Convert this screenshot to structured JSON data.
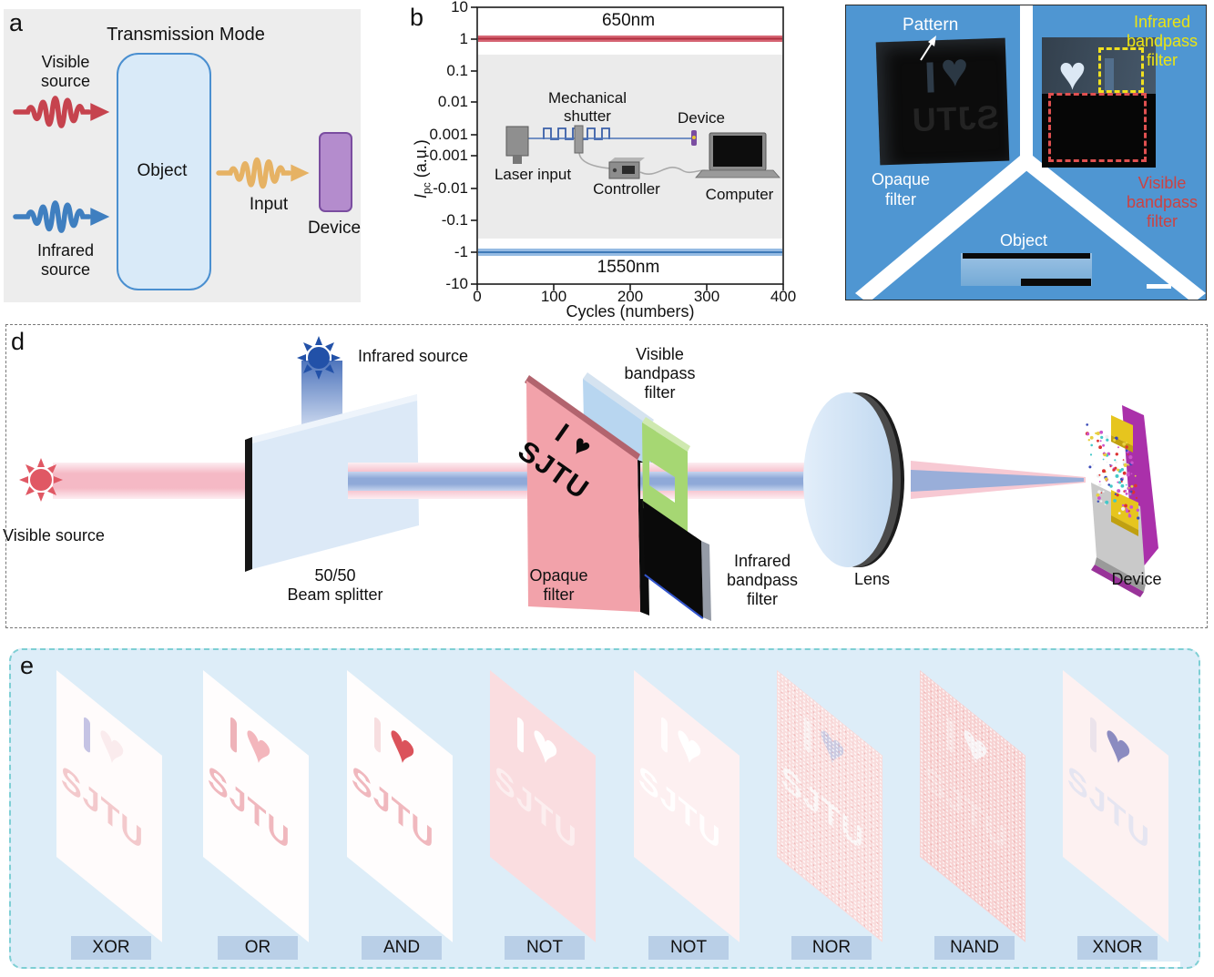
{
  "figure": {
    "a_letter": "a",
    "b_letter": "b",
    "d_letter": "d",
    "e_letter": "e"
  },
  "a": {
    "title": "Transmission Mode",
    "visible_source": [
      "Visible",
      "source"
    ],
    "infrared_source": [
      "Infrared",
      "source"
    ],
    "object_label": "Object",
    "input_label": "Input",
    "device_label": "Device",
    "colors": {
      "visible_wave": "#c6434e",
      "infrared_wave": "#3f7fc0",
      "input_wave": "#e6b264",
      "object_fill": "#d9eaf8",
      "object_border": "#4a8fd0",
      "device_fill": "#b48ccd",
      "device_border": "#7a4da0",
      "bg": "#ededed"
    }
  },
  "b": {
    "top_series_label": "650nm",
    "bottom_series_label": "1550nm",
    "ylabel": {
      "sym": "I",
      "sub": "pc",
      "rest": "(a.u.)"
    },
    "xlabel": "Cycles (numbers)",
    "yticks": [
      "10",
      "1",
      "0.1",
      "0.01",
      "0.001",
      "-0.001",
      "-0.01",
      "-0.1",
      "-1",
      "-10"
    ],
    "xticks": [
      "0",
      "100",
      "200",
      "300",
      "400"
    ],
    "inset": {
      "shutter": [
        "Mechanical",
        "shutter"
      ],
      "device": "Device",
      "laser": "Laser input",
      "controller": "Controller",
      "computer": "Computer"
    }
  },
  "chart_data": {
    "type": "line",
    "title": "",
    "xlabel": "Cycles (numbers)",
    "ylabel": "Ipc (a.u.)",
    "x_range": [
      0,
      400
    ],
    "x_ticks": [
      0,
      100,
      200,
      300,
      400
    ],
    "y_scale": "symlog",
    "y_ticks": [
      10,
      1,
      0.1,
      0.01,
      0.001,
      -0.001,
      -0.01,
      -0.1,
      -1,
      -10
    ],
    "grid": false,
    "legend_position": "inline",
    "series": [
      {
        "name": "650nm",
        "color": "#c84052",
        "x": [
          0,
          400
        ],
        "y": [
          1.05,
          1.05
        ],
        "note": "flat noisy photocurrent line at ~+1 a.u. across all 400 cycles"
      },
      {
        "name": "1550nm",
        "color": "#5b93cc",
        "x": [
          0,
          400
        ],
        "y": [
          -1.0,
          -1.0
        ],
        "note": "flat noisy photocurrent line at ~-1 a.u. across all 400 cycles"
      }
    ]
  },
  "c": {
    "pattern": "Pattern",
    "opaque": [
      "Opaque",
      "filter"
    ],
    "infrared_bp": [
      "Infrared",
      "bandpass",
      "filter"
    ],
    "visible_bp": [
      "Visible",
      "bandpass",
      "filter"
    ],
    "object": "Object",
    "engraved_text": "SJTU",
    "heart": "♥",
    "colors": {
      "photo_bg": "#4f96d2",
      "ir_label": "#ece412",
      "vis_label": "#cc4242"
    }
  },
  "d": {
    "infrared_source": "Infrared source",
    "visible_source": "Visible source",
    "beam_splitter": [
      "50/50",
      "Beam splitter"
    ],
    "opaque_filter": [
      "Opaque",
      "filter"
    ],
    "visible_bp": [
      "Visible",
      "bandpass",
      "filter"
    ],
    "infrared_bp": [
      "Infrared",
      "bandpass",
      "filter"
    ],
    "lens": "Lens",
    "device": "Device",
    "mask_line1": "I ♥",
    "mask_line2": "SJTU",
    "device_palette": [
      "#cc55cc",
      "#dd3333",
      "#f0f0f0",
      "#3a4ab8",
      "#44c8c8",
      "#e8d040"
    ]
  },
  "e": {
    "heart": "♥",
    "sjtu": "SJTU",
    "colors": {
      "bg": "#ddedf8",
      "border": "#7ecfd4",
      "label_bg": "#b9cfe7"
    },
    "gates": [
      {
        "label": "XOR",
        "sheet_bg": "#fffbfb",
        "i_color": "rgba(150,150,210,0.55)",
        "heart_color": "rgba(240,200,205,0.30)",
        "sjtu_color": "rgba(235,168,174,0.60)",
        "noisy": false
      },
      {
        "label": "OR",
        "sheet_bg": "#fffdfd",
        "i_color": "rgba(232,154,162,0.75)",
        "heart_color": "rgba(242,178,184,0.95)",
        "sjtu_color": "rgba(232,148,156,0.65)",
        "noisy": false
      },
      {
        "label": "AND",
        "sheet_bg": "#fffdfd",
        "i_color": "rgba(240,192,196,0.50)",
        "heart_color": "rgba(217,74,82,0.95)",
        "sjtu_color": "rgba(232,148,156,0.65)",
        "noisy": false
      },
      {
        "label": "NOT",
        "sheet_bg": "#fadde0",
        "i_color": "rgba(255,255,255,0.95)",
        "heart_color": "rgba(255,255,255,0.97)",
        "sjtu_color": "rgba(252,240,241,0.90)",
        "noisy": false
      },
      {
        "label": "NOT",
        "sheet_bg": "#fdf0f1",
        "i_color": "rgba(255,255,255,0.80)",
        "heart_color": "rgba(255,255,255,0.97)",
        "sjtu_color": "rgba(255,255,255,0.90)",
        "noisy": false
      },
      {
        "label": "NOR",
        "sheet_bg": "#f9dcdc",
        "i_color": "rgba(248,240,240,0.90)",
        "heart_color": "rgba(200,200,224,0.95)",
        "sjtu_color": "rgba(250,246,246,0.95)",
        "noisy": true
      },
      {
        "label": "NAND",
        "sheet_bg": "#f7d2d2",
        "i_color": "rgba(248,228,228,0.80)",
        "heart_color": "rgba(247,243,245,0.97)",
        "sjtu_color": "rgba(246,226,226,0.60)",
        "noisy": true
      },
      {
        "label": "XNOR",
        "sheet_bg": "#fdf1f1",
        "i_color": "rgba(232,224,234,0.85)",
        "heart_color": "rgba(133,133,189,0.95)",
        "sjtu_color": "rgba(228,228,240,0.95)",
        "noisy": false
      }
    ]
  }
}
